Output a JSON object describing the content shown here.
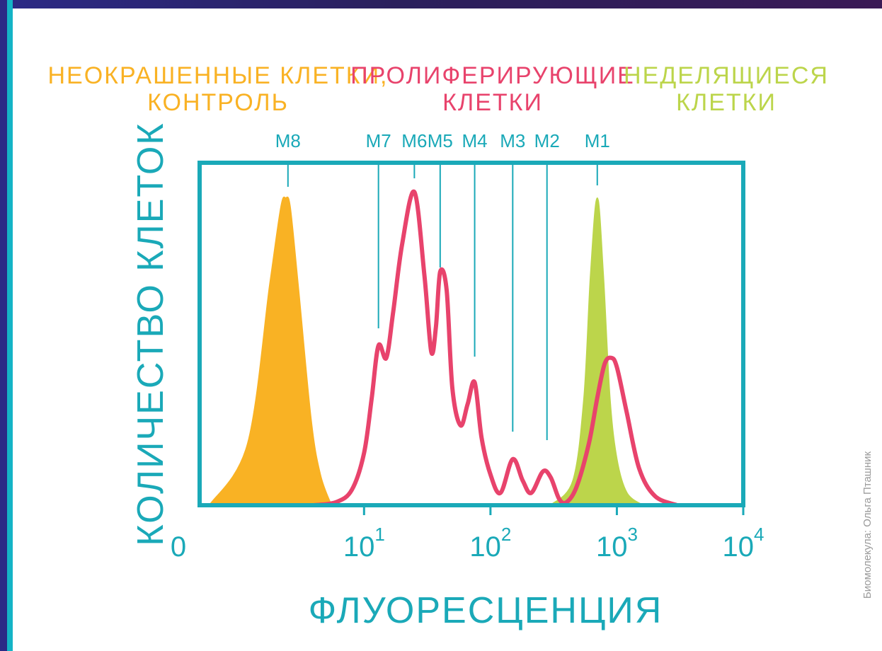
{
  "colors": {
    "teal": "#1aa9b8",
    "orange": "#f9b224",
    "pink": "#e8436c",
    "green": "#bcd54b",
    "frame_bg": "#2a1f5c",
    "stripe": "#14b4c6"
  },
  "legend": [
    {
      "line1": "НЕОКРАШЕННЫЕ КЛЕТКИ,",
      "line2": "КОНТРОЛЬ",
      "color": "#f9b224"
    },
    {
      "line1": "ПРОЛИФЕРИРУЮЩИЕ",
      "line2": "КЛЕТКИ",
      "color": "#e8436c"
    },
    {
      "line1": "НЕДЕЛЯЩИЕСЯ",
      "line2": "КЛЕТКИ",
      "color": "#bcd54b"
    }
  ],
  "credit": "Биомолекула: Ольга Пташник",
  "chart_data": {
    "type": "area",
    "xlabel": "ФЛУОРЕСЦЕНЦИЯ",
    "ylabel": "КОЛИЧЕСТВО КЛЕТОК",
    "x_scale": "log",
    "xlim": [
      0.5,
      10000
    ],
    "ylim": [
      0,
      1
    ],
    "x_ticks": [
      {
        "base": "0",
        "exp": ""
      },
      {
        "base": "10",
        "exp": "1"
      },
      {
        "base": "10",
        "exp": "2"
      },
      {
        "base": "10",
        "exp": "3"
      },
      {
        "base": "10",
        "exp": "4"
      }
    ],
    "markers": [
      {
        "label": "M8",
        "x": 2.5
      },
      {
        "label": "M7",
        "x": 13
      },
      {
        "label": "M6",
        "x": 25
      },
      {
        "label": "M5",
        "x": 40
      },
      {
        "label": "M4",
        "x": 75
      },
      {
        "label": "M3",
        "x": 150
      },
      {
        "label": "M2",
        "x": 280
      },
      {
        "label": "M1",
        "x": 700
      }
    ],
    "series": [
      {
        "name": "НЕОКРАШЕННЫЕ КЛЕТКИ, КОНТРОЛЬ",
        "style": "filled",
        "color": "#f9b224",
        "x": [
          0.6,
          1.2,
          1.8,
          2.2,
          2.4,
          2.6,
          3.0,
          3.8,
          4.5,
          5.5
        ],
        "y": [
          0,
          0.2,
          0.72,
          0.97,
          1.0,
          0.97,
          0.72,
          0.28,
          0.1,
          0
        ]
      },
      {
        "name": "ПРОЛИФЕРИРУЮЩИЕ КЛЕТКИ",
        "style": "line",
        "color": "#e8436c",
        "x": [
          4,
          6,
          8,
          10,
          11.5,
          13,
          15,
          17,
          20,
          25,
          30,
          34,
          37,
          40,
          45,
          50,
          58,
          66,
          75,
          85,
          100,
          120,
          150,
          180,
          210,
          260,
          300,
          350,
          400,
          480,
          600,
          700,
          800,
          900,
          1000,
          1200,
          1500,
          2000,
          3000
        ],
        "y": [
          0,
          0.01,
          0.05,
          0.17,
          0.35,
          0.52,
          0.48,
          0.63,
          0.85,
          1.02,
          0.75,
          0.5,
          0.58,
          0.76,
          0.7,
          0.38,
          0.26,
          0.33,
          0.4,
          0.22,
          0.1,
          0.04,
          0.15,
          0.08,
          0.04,
          0.11,
          0.09,
          0.02,
          0.01,
          0.06,
          0.2,
          0.35,
          0.46,
          0.48,
          0.45,
          0.3,
          0.12,
          0.03,
          0
        ]
      },
      {
        "name": "НЕДЕЛЯЩИЕСЯ КЛЕТКИ",
        "style": "filled",
        "color": "#bcd54b",
        "x": [
          300,
          450,
          550,
          620,
          700,
          780,
          880,
          1000,
          1200,
          1600
        ],
        "y": [
          0,
          0.08,
          0.35,
          0.75,
          1.0,
          0.75,
          0.35,
          0.15,
          0.04,
          0
        ]
      }
    ]
  }
}
